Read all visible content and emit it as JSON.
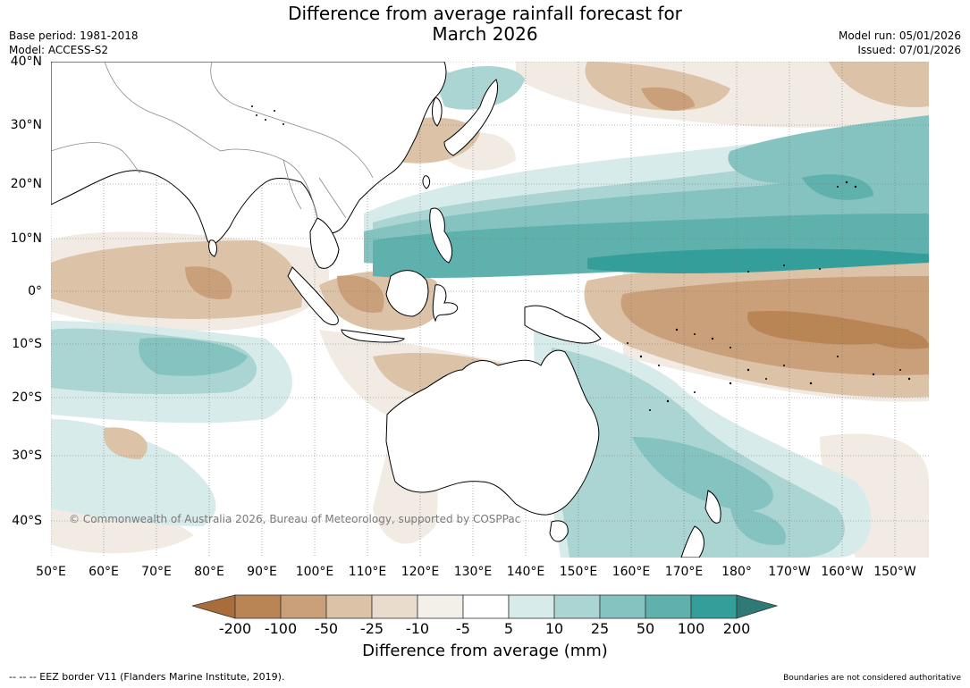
{
  "header": {
    "title_line1": "Difference from average rainfall forecast for",
    "title_line2": "March 2026",
    "base_period": "Base period: 1981-2018",
    "model": "Model: ACCESS-S2",
    "model_run": "Model run: 05/01/2026",
    "issued": "Issued: 07/01/2026"
  },
  "axes": {
    "lat_labels": [
      "40°N",
      "30°N",
      "20°N",
      "10°N",
      "0°",
      "10°S",
      "20°S",
      "30°S",
      "40°S"
    ],
    "lon_labels": [
      "50°E",
      "60°E",
      "70°E",
      "80°E",
      "90°E",
      "100°E",
      "110°E",
      "120°E",
      "130°E",
      "140°E",
      "150°E",
      "160°E",
      "170°E",
      "180°",
      "170°W",
      "160°W",
      "150°W"
    ]
  },
  "colorbar": {
    "title": "Difference from average (mm)",
    "labels": [
      "-200",
      "-100",
      "-50",
      "-25",
      "-10",
      "-5",
      "5",
      "10",
      "25",
      "50",
      "100",
      "200"
    ],
    "colors": [
      "#a86d3a",
      "#b98555",
      "#c9a07a",
      "#dcc2a6",
      "#e9dccd",
      "#f3efe9",
      "#ffffff",
      "#d7ebea",
      "#aad5d3",
      "#84c3c0",
      "#5fb1ad",
      "#349f9a",
      "#2e7a76"
    ]
  },
  "footer": {
    "copyright": "© Commonwealth of Australia 2026, Bureau of Meteorology, supported by COSPPac",
    "eez": "-- -- -- EEZ border V11 (Flanders Marine Institute, 2019).",
    "boundaries": "Boundaries are not considered authoritative"
  }
}
